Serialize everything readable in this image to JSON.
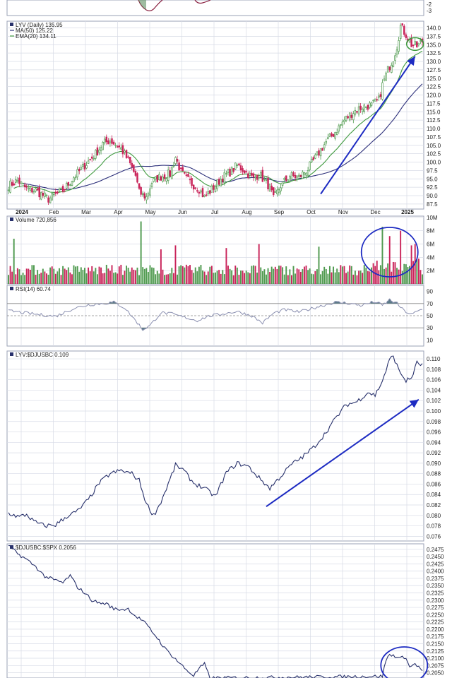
{
  "colors": {
    "up": "#4f9a4f",
    "down": "#c9245a",
    "ma50": "#2c2f7a",
    "ema20": "#3f9a3f",
    "rsi": "#8a8fb0",
    "ratio": "#27306b",
    "annotation": "#1d2bc2",
    "grid": "#d7dbe6",
    "border": "#9aa0b5"
  },
  "top_panel": {
    "tick_labels": [
      "-2",
      "-3"
    ]
  },
  "chart_data": [
    {
      "id": "price",
      "type": "candlestick",
      "legend": [
        {
          "text": "LYV (Daily) 135.95",
          "icon": "candle-icon",
          "color": "#222222"
        },
        {
          "text": "MA(50) 125.22",
          "icon": "line-icon",
          "color": "#2c2f7a"
        },
        {
          "text": "EMA(20) 134.11",
          "icon": "line-icon",
          "color": "#3f9a3f"
        }
      ],
      "x_tick_labels": [
        "2024",
        "Feb",
        "Mar",
        "Apr",
        "May",
        "Jun",
        "Jul",
        "Aug",
        "Sep",
        "Oct",
        "Nov",
        "Dec",
        "2025"
      ],
      "y_ticks": [
        87.5,
        90.0,
        92.5,
        95.0,
        97.5,
        100.0,
        102.5,
        105.0,
        107.5,
        110.0,
        112.5,
        115.0,
        117.5,
        120.0,
        122.5,
        125.0,
        127.5,
        130.0,
        132.5,
        135.0,
        137.5,
        140.0
      ],
      "ylim": [
        86,
        142
      ],
      "close_anchors": [
        [
          0,
          93.0
        ],
        [
          5,
          94.5
        ],
        [
          10,
          92.0
        ],
        [
          15,
          91.5
        ],
        [
          22,
          89.0
        ],
        [
          30,
          91.5
        ],
        [
          36,
          95.5
        ],
        [
          42,
          99.0
        ],
        [
          48,
          102.5
        ],
        [
          52,
          105.5
        ],
        [
          56,
          106.5
        ],
        [
          62,
          104.0
        ],
        [
          66,
          100.5
        ],
        [
          70,
          96.0
        ],
        [
          72,
          91.0
        ],
        [
          76,
          89.5
        ],
        [
          79,
          94.0
        ],
        [
          83,
          95.5
        ],
        [
          89,
          96.5
        ],
        [
          92,
          101.5
        ],
        [
          95,
          97.0
        ],
        [
          100,
          94.0
        ],
        [
          105,
          92.0
        ],
        [
          108,
          89.5
        ],
        [
          113,
          92.5
        ],
        [
          118,
          95.5
        ],
        [
          122,
          97.0
        ],
        [
          126,
          99.0
        ],
        [
          130,
          97.5
        ],
        [
          135,
          95.0
        ],
        [
          138,
          96.5
        ],
        [
          144,
          92.5
        ],
        [
          146,
          89.0
        ],
        [
          150,
          93.0
        ],
        [
          155,
          96.0
        ],
        [
          160,
          95.5
        ],
        [
          165,
          98.0
        ],
        [
          170,
          102.0
        ],
        [
          175,
          106.0
        ],
        [
          180,
          109.0
        ],
        [
          185,
          112.5
        ],
        [
          190,
          115.0
        ],
        [
          195,
          116.5
        ],
        [
          200,
          117.0
        ],
        [
          204,
          118.5
        ],
        [
          206,
          123.0
        ],
        [
          209,
          127.5
        ],
        [
          212,
          131.0
        ],
        [
          214,
          134.5
        ],
        [
          216,
          140.5
        ],
        [
          219,
          138.0
        ],
        [
          222,
          135.0
        ],
        [
          225,
          134.5
        ],
        [
          228,
          136.0
        ]
      ],
      "annotations": [
        {
          "shape": "arrow",
          "color": "#1d2bc2"
        },
        {
          "shape": "ellipse",
          "color": "#3f9a3f"
        }
      ]
    },
    {
      "id": "volume",
      "type": "bar",
      "legend": [
        {
          "text": "Volume 720,856",
          "icon": "volume-icon",
          "color": "#222222"
        }
      ],
      "y_ticks_labels": [
        "10M",
        "8M",
        "6M",
        "4M",
        "2M"
      ],
      "y_ticks": [
        10,
        8,
        6,
        4,
        2
      ],
      "ylim": [
        0,
        10.2
      ],
      "unit": "M",
      "spikes": [
        [
          3,
          6.8
        ],
        [
          73,
          9.4
        ],
        [
          84,
          5.2
        ],
        [
          92,
          5.8
        ],
        [
          120,
          5.4
        ],
        [
          138,
          6.0
        ],
        [
          171,
          5.6
        ],
        [
          206,
          8.6
        ],
        [
          210,
          7.2
        ],
        [
          216,
          8.0
        ],
        [
          222,
          5.8
        ],
        [
          224,
          6.0
        ]
      ],
      "annotations": [
        {
          "shape": "ellipse",
          "color": "#1d2bc2"
        }
      ]
    },
    {
      "id": "rsi",
      "type": "line",
      "legend": [
        {
          "text": "RSI(14) 60.74",
          "icon": "line-icon",
          "color": "#222222"
        }
      ],
      "y_ticks": [
        90,
        70,
        50,
        30,
        10
      ],
      "ylim": [
        0,
        100
      ],
      "levels": [
        70,
        50,
        30
      ],
      "anchors": [
        [
          0,
          58
        ],
        [
          8,
          55
        ],
        [
          16,
          52
        ],
        [
          26,
          49
        ],
        [
          36,
          62
        ],
        [
          44,
          68
        ],
        [
          52,
          70
        ],
        [
          58,
          72
        ],
        [
          64,
          63
        ],
        [
          70,
          42
        ],
        [
          74,
          27
        ],
        [
          78,
          34
        ],
        [
          84,
          55
        ],
        [
          90,
          53
        ],
        [
          96,
          48
        ],
        [
          104,
          42
        ],
        [
          110,
          49
        ],
        [
          118,
          53
        ],
        [
          126,
          57
        ],
        [
          134,
          50
        ],
        [
          140,
          38
        ],
        [
          146,
          54
        ],
        [
          152,
          60
        ],
        [
          160,
          56
        ],
        [
          166,
          61
        ],
        [
          172,
          66
        ],
        [
          180,
          72
        ],
        [
          186,
          71
        ],
        [
          194,
          67
        ],
        [
          202,
          73
        ],
        [
          206,
          67
        ],
        [
          210,
          76
        ],
        [
          214,
          70
        ],
        [
          218,
          58
        ],
        [
          222,
          52
        ],
        [
          228,
          61
        ]
      ]
    },
    {
      "id": "ratio1",
      "type": "line",
      "legend": [
        {
          "text": "LYV:$DJUSBC 0.109",
          "icon": "line-icon",
          "color": "#222222"
        }
      ],
      "y_ticks": [
        0.11,
        0.108,
        0.106,
        0.104,
        0.102,
        0.1,
        0.098,
        0.096,
        0.094,
        0.092,
        0.09,
        0.088,
        0.086,
        0.084,
        0.082,
        0.08,
        0.078,
        0.076
      ],
      "ylim": [
        0.0751,
        0.1115
      ],
      "anchors": [
        [
          0,
          0.0804
        ],
        [
          6,
          0.0797
        ],
        [
          10,
          0.0802
        ],
        [
          14,
          0.0788
        ],
        [
          20,
          0.078
        ],
        [
          26,
          0.0782
        ],
        [
          32,
          0.0798
        ],
        [
          38,
          0.0808
        ],
        [
          44,
          0.083
        ],
        [
          50,
          0.0862
        ],
        [
          56,
          0.088
        ],
        [
          62,
          0.0886
        ],
        [
          68,
          0.088
        ],
        [
          72,
          0.0867
        ],
        [
          76,
          0.0822
        ],
        [
          80,
          0.08
        ],
        [
          84,
          0.0826
        ],
        [
          88,
          0.086
        ],
        [
          92,
          0.0896
        ],
        [
          96,
          0.0888
        ],
        [
          102,
          0.0862
        ],
        [
          108,
          0.0852
        ],
        [
          114,
          0.0836
        ],
        [
          120,
          0.0882
        ],
        [
          126,
          0.09
        ],
        [
          132,
          0.0894
        ],
        [
          138,
          0.0872
        ],
        [
          144,
          0.0852
        ],
        [
          150,
          0.0875
        ],
        [
          156,
          0.0898
        ],
        [
          162,
          0.0912
        ],
        [
          168,
          0.093
        ],
        [
          174,
          0.0955
        ],
        [
          180,
          0.0985
        ],
        [
          186,
          0.1012
        ],
        [
          192,
          0.1018
        ],
        [
          198,
          0.1036
        ],
        [
          202,
          0.103
        ],
        [
          206,
          0.1058
        ],
        [
          210,
          0.1098
        ],
        [
          212,
          0.1106
        ],
        [
          215,
          0.1078
        ],
        [
          219,
          0.1058
        ],
        [
          222,
          0.1063
        ],
        [
          225,
          0.1092
        ],
        [
          228,
          0.1088
        ]
      ],
      "annotations": [
        {
          "shape": "arrow",
          "color": "#1d2bc2"
        }
      ]
    },
    {
      "id": "ratio2",
      "type": "line",
      "legend": [
        {
          "text": "$DJUSBC:$SPX 0.2056",
          "icon": "line-icon",
          "color": "#222222"
        }
      ],
      "y_ticks": [
        0.2475,
        0.245,
        0.2425,
        0.24,
        0.2375,
        0.235,
        0.2325,
        0.23,
        0.2275,
        0.225,
        0.2225,
        0.22,
        0.2175,
        0.215,
        0.2125,
        0.21,
        0.2075,
        0.205
      ],
      "ylim": [
        0.2032,
        0.2494
      ],
      "anchors": [
        [
          0,
          0.2488
        ],
        [
          5,
          0.246
        ],
        [
          10,
          0.244
        ],
        [
          15,
          0.2415
        ],
        [
          20,
          0.2382
        ],
        [
          26,
          0.2368
        ],
        [
          30,
          0.236
        ],
        [
          34,
          0.2385
        ],
        [
          38,
          0.2345
        ],
        [
          42,
          0.2325
        ],
        [
          46,
          0.23
        ],
        [
          50,
          0.229
        ],
        [
          54,
          0.2288
        ],
        [
          58,
          0.227
        ],
        [
          62,
          0.2268
        ],
        [
          66,
          0.227
        ],
        [
          70,
          0.2245
        ],
        [
          74,
          0.223
        ],
        [
          78,
          0.22
        ],
        [
          82,
          0.217
        ],
        [
          86,
          0.2135
        ],
        [
          90,
          0.211
        ],
        [
          94,
          0.2085
        ],
        [
          98,
          0.206
        ],
        [
          102,
          0.204
        ],
        [
          105,
          0.2065
        ],
        [
          108,
          0.208
        ],
        [
          111,
          0.2032
        ],
        [
          206,
          0.2038
        ],
        [
          208,
          0.2095
        ],
        [
          210,
          0.2112
        ],
        [
          213,
          0.2108
        ],
        [
          216,
          0.21
        ],
        [
          219,
          0.2105
        ],
        [
          221,
          0.2068
        ],
        [
          224,
          0.2082
        ],
        [
          228,
          0.2056
        ]
      ],
      "annotations": [
        {
          "shape": "ellipse",
          "color": "#1d2bc2"
        }
      ]
    }
  ]
}
